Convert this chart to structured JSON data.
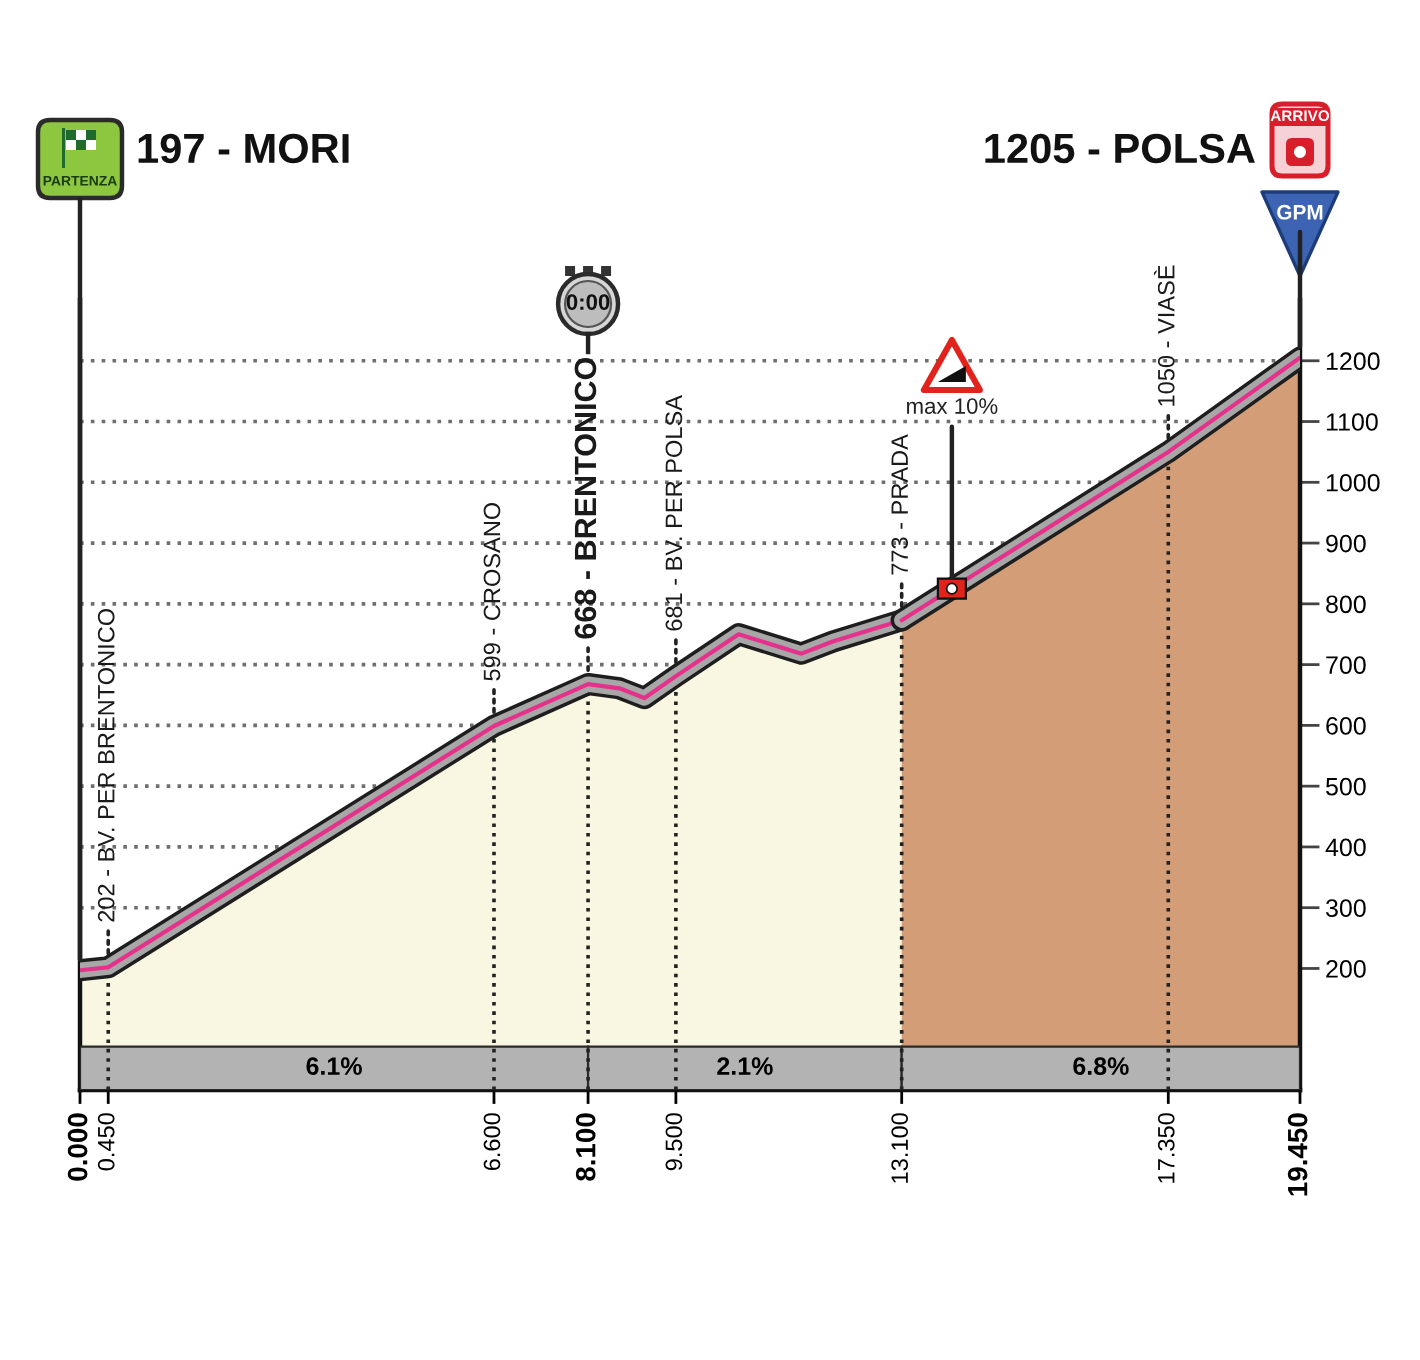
{
  "chart_data": {
    "type": "area",
    "series": [
      {
        "color": "#f9f7e1",
        "x": [
          0,
          0.45,
          6.6,
          8.1,
          8.6,
          9.0,
          9.5,
          10.5,
          11.5,
          12.0,
          13.1
        ],
        "values": [
          197,
          202,
          599,
          668,
          661,
          645,
          681,
          750,
          718,
          738,
          773
        ]
      },
      {
        "color": "#d39d78",
        "x": [
          13.1,
          17.35,
          19.45
        ],
        "values": [
          773,
          1050,
          1205
        ]
      }
    ],
    "xlim": [
      0,
      19.45
    ],
    "xticks": [
      {
        "value": 0,
        "label": "0.000"
      },
      {
        "value": 0.45,
        "label": "0.450"
      },
      {
        "value": 6.6,
        "label": "6.600"
      },
      {
        "value": 8.1,
        "label": "8.100"
      },
      {
        "value": 9.5,
        "label": "9.500"
      },
      {
        "value": 13.1,
        "label": "13.100"
      },
      {
        "value": 17.35,
        "label": "17.350"
      },
      {
        "value": 19.45,
        "label": "19.450"
      }
    ],
    "ylim": [
      0,
      1300
    ],
    "yticks": [
      200,
      300,
      400,
      500,
      600,
      700,
      800,
      900,
      1000,
      1100,
      1200
    ],
    "grid": "y",
    "ref_lines": [
      {
        "axis": "x",
        "value": 0.45,
        "color": "#222222",
        "line_style": "dotted"
      },
      {
        "axis": "x",
        "value": 6.6,
        "color": "#222222",
        "line_style": "dotted"
      },
      {
        "axis": "x",
        "value": 8.1,
        "color": "#222222",
        "line_style": "dotted"
      },
      {
        "axis": "x",
        "value": 9.5,
        "color": "#222222",
        "line_style": "dotted"
      },
      {
        "axis": "x",
        "value": 13.1,
        "color": "#222222",
        "line_style": "dotted"
      },
      {
        "axis": "x",
        "value": 17.35,
        "color": "#222222",
        "line_style": "dotted"
      }
    ],
    "bands": [
      {
        "axis": "x",
        "from": 0,
        "to": 8.1,
        "label": "6.1%",
        "color": "#b3b3b3"
      },
      {
        "axis": "x",
        "from": 8.1,
        "to": 13.1,
        "label": "2.1%",
        "color": "#b3b3b3"
      },
      {
        "axis": "x",
        "from": 13.1,
        "to": 19.45,
        "label": "6.8%",
        "color": "#b3b3b3"
      }
    ],
    "annotations": [
      "197 - MORI",
      {
        "text": "PARTENZA",
        "x": 0,
        "y": 197
      },
      {
        "text": "202 - BV. PER BRENTONICO",
        "x": 0.45,
        "y": 202
      },
      {
        "text": "599 - CROSANO",
        "x": 6.6,
        "y": 599
      },
      {
        "text": "668 - BRENTONICO",
        "x": 8.1,
        "y": 668
      },
      "0:00",
      {
        "text": "681 - BV. PER POLSA",
        "x": 9.5,
        "y": 681
      },
      {
        "text": "773 - PRADA",
        "x": 13.1,
        "y": 773
      },
      {
        "text": "max 10%",
        "x": 13.9,
        "y": 825
      },
      {
        "text": "1050 - VIASÈ",
        "x": 17.35,
        "y": 1050
      },
      "1205 - POLSA",
      "ARRIVO",
      {
        "text": "GPM",
        "x": 19.45,
        "y": 1205
      }
    ]
  }
}
